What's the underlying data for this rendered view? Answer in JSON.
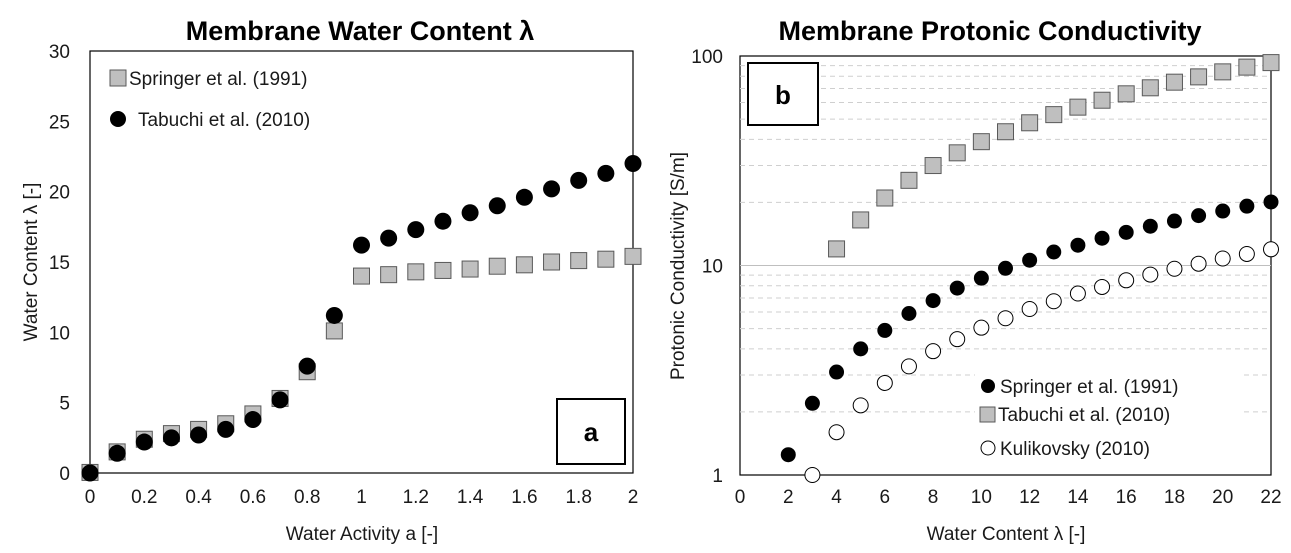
{
  "chart_data": [
    {
      "type": "scatter",
      "panel": "a",
      "title": "Membrane Water Content λ",
      "xlabel": "Water Activity a [-]",
      "ylabel": "Water Content λ [-]",
      "xlim": [
        0,
        2
      ],
      "ylim": [
        0,
        30
      ],
      "xticks": [
        0,
        0.2,
        0.4,
        0.6,
        0.8,
        1,
        1.2,
        1.4,
        1.6,
        1.8,
        2
      ],
      "xtick_labels": [
        "0",
        "0.2",
        "0.4",
        "0.6",
        "0.8",
        "1",
        "1.2",
        "1.4",
        "1.6",
        "1.8",
        "2"
      ],
      "yticks": [
        0,
        5,
        10,
        15,
        20,
        25,
        30
      ],
      "ytick_labels": [
        "0",
        "5",
        "10",
        "15",
        "20",
        "25",
        "30"
      ],
      "legend_position": "top-left",
      "series": [
        {
          "name": "Springer et al. (1991)",
          "marker": "square",
          "color": "#bfbfbf",
          "x": [
            0,
            0.1,
            0.2,
            0.3,
            0.4,
            0.5,
            0.6,
            0.7,
            0.8,
            0.9,
            1,
            1.1,
            1.2,
            1.3,
            1.4,
            1.5,
            1.6,
            1.7,
            1.8,
            1.9,
            2
          ],
          "y": [
            0.04,
            1.5,
            2.4,
            2.8,
            3.1,
            3.5,
            4.2,
            5.3,
            7.2,
            10.1,
            14.0,
            14.1,
            14.3,
            14.4,
            14.5,
            14.7,
            14.8,
            15.0,
            15.1,
            15.2,
            15.4
          ]
        },
        {
          "name": "Tabuchi et al. (2010)",
          "marker": "circle",
          "color": "#000000",
          "x": [
            0,
            0.1,
            0.2,
            0.3,
            0.4,
            0.5,
            0.6,
            0.7,
            0.8,
            0.9,
            1,
            1.1,
            1.2,
            1.3,
            1.4,
            1.5,
            1.6,
            1.7,
            1.8,
            1.9,
            2
          ],
          "y": [
            0.0,
            1.4,
            2.2,
            2.5,
            2.7,
            3.1,
            3.8,
            5.2,
            7.6,
            11.2,
            16.2,
            16.7,
            17.3,
            17.9,
            18.5,
            19.0,
            19.6,
            20.2,
            20.8,
            21.3,
            22.0
          ]
        }
      ]
    },
    {
      "type": "scatter",
      "panel": "b",
      "title": "Membrane Protonic Conductivity",
      "xlabel": "Water Content λ [-]",
      "ylabel": "Protonic Conductivity [S/m]",
      "xlim": [
        0,
        22
      ],
      "ylim": [
        1,
        100
      ],
      "yscale": "log",
      "xticks": [
        0,
        2,
        4,
        6,
        8,
        10,
        12,
        14,
        16,
        18,
        20,
        22
      ],
      "xtick_labels": [
        "0",
        "2",
        "4",
        "6",
        "8",
        "10",
        "12",
        "14",
        "16",
        "18",
        "20",
        "22"
      ],
      "yticks": [
        1,
        10,
        100
      ],
      "ytick_labels": [
        "1",
        "10",
        "100"
      ],
      "legend_position": "bottom-right",
      "series": [
        {
          "name": "Springer et al. (1991)",
          "marker": "circle",
          "color": "#000000",
          "x": [
            2,
            3,
            4,
            5,
            6,
            7,
            8,
            9,
            10,
            11,
            12,
            13,
            14,
            15,
            16,
            17,
            18,
            19,
            20,
            21,
            22
          ],
          "y": [
            1.25,
            2.2,
            3.1,
            4.0,
            4.9,
            5.9,
            6.8,
            7.8,
            8.7,
            9.7,
            10.6,
            11.6,
            12.5,
            13.5,
            14.4,
            15.4,
            16.3,
            17.3,
            18.2,
            19.2,
            20.1
          ]
        },
        {
          "name": "Tabuchi et al. (2010)",
          "marker": "square",
          "color": "#bfbfbf",
          "x": [
            4,
            5,
            6,
            7,
            8,
            9,
            10,
            11,
            12,
            13,
            14,
            15,
            16,
            17,
            18,
            19,
            20,
            21,
            22
          ],
          "y": [
            12,
            16.5,
            21,
            25.5,
            30,
            34.5,
            39,
            43.5,
            48,
            52.5,
            57,
            61.5,
            66,
            70.5,
            75,
            79.5,
            84,
            88.5,
            93
          ]
        },
        {
          "name": "Kulikovsky (2010)",
          "marker": "circle-open",
          "color": "#ffffff",
          "x": [
            3,
            4,
            5,
            6,
            7,
            8,
            9,
            10,
            11,
            12,
            13,
            14,
            15,
            16,
            17,
            18,
            19,
            20,
            21,
            22
          ],
          "y": [
            1.0,
            1.6,
            2.15,
            2.75,
            3.3,
            3.9,
            4.45,
            5.05,
            5.6,
            6.2,
            6.75,
            7.35,
            7.9,
            8.5,
            9.05,
            9.65,
            10.2,
            10.8,
            11.35,
            11.95
          ]
        }
      ]
    }
  ]
}
